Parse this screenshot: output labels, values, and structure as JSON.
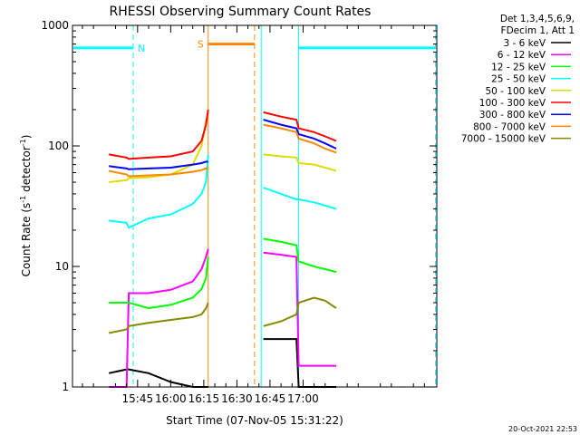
{
  "chart_data": {
    "type": "line",
    "title": "RHESSI Observing Summary Count Rates",
    "xlabel": "Start Time (07-Nov-05 15:31:22)",
    "ylabel_main": "Count Rate (s",
    "ylabel_sup1": "-1",
    "ylabel_mid": " detector",
    "ylabel_sup2": "-1",
    "ylabel_end": ")",
    "y_scale": "log",
    "ylim": [
      1,
      1000
    ],
    "xlim_minutes": [
      15.5,
      180.6
    ],
    "x_ticks": [
      {
        "min": 45,
        "label": "15:45"
      },
      {
        "min": 60,
        "label": "16:00"
      },
      {
        "min": 75,
        "label": "16:15"
      },
      {
        "min": 90,
        "label": "16:30"
      },
      {
        "min": 105,
        "label": "16:45"
      },
      {
        "min": 120,
        "label": "17:00"
      }
    ],
    "y_ticks": [
      {
        "v": 1,
        "label": "1"
      },
      {
        "v": 10,
        "label": "10"
      },
      {
        "v": 100,
        "label": "100"
      },
      {
        "v": 1000,
        "label": "1000"
      }
    ],
    "legend_header": [
      "Det 1,3,4,5,6,9,",
      "FDecim 1, Att 1"
    ],
    "legend_position": "right",
    "series": [
      {
        "name": "3 - 6 keV",
        "color": "#000000"
      },
      {
        "name": "6 - 12 keV",
        "color": "#ff00ff"
      },
      {
        "name": "12 - 25 keV",
        "color": "#00ff00"
      },
      {
        "name": "25 - 50 keV",
        "color": "#00ffff"
      },
      {
        "name": "50 - 100 keV",
        "color": "#dddd00"
      },
      {
        "name": "100 - 300 keV",
        "color": "#ff0000"
      },
      {
        "name": "300 - 800 keV",
        "color": "#0000ff"
      },
      {
        "name": "800 - 7000 keV",
        "color": "#ff8800"
      },
      {
        "name": "7000 - 15000 keV",
        "color": "#888800"
      }
    ],
    "segments": [
      {
        "x": [
          32,
          40,
          41,
          50,
          60,
          70,
          74,
          76,
          77
        ],
        "series": [
          {
            "values": [
              1.3,
              1.4,
              1.4,
              1.3,
              1.1,
              1.0,
              1.0,
              1.0,
              1.0
            ]
          },
          {
            "values": [
              1.0,
              1.0,
              6.0,
              6.0,
              6.4,
              7.5,
              9.5,
              12,
              14
            ]
          },
          {
            "values": [
              5.0,
              5.0,
              5.0,
              4.5,
              4.8,
              5.5,
              6.5,
              8.0,
              12
            ]
          },
          {
            "values": [
              24,
              23,
              21,
              25,
              27,
              33,
              40,
              50,
              85
            ]
          },
          {
            "values": [
              50,
              52,
              54,
              55,
              58,
              70,
              100,
              160,
              180
            ]
          },
          {
            "values": [
              85,
              80,
              78,
              80,
              82,
              90,
              110,
              150,
              200
            ]
          },
          {
            "values": [
              68,
              65,
              64,
              65,
              66,
              70,
              72,
              74,
              74
            ]
          },
          {
            "values": [
              62,
              58,
              56,
              57,
              58,
              61,
              63,
              65,
              65
            ]
          },
          {
            "values": [
              2.8,
              3.0,
              3.2,
              3.4,
              3.6,
              3.8,
              4.0,
              4.5,
              5.0
            ]
          }
        ]
      },
      {
        "x": [
          102,
          110,
          117,
          118,
          125,
          130,
          135
        ],
        "series": [
          {
            "values": [
              2.5,
              2.5,
              2.5,
              1.0,
              1.0,
              1.0,
              1.0
            ]
          },
          {
            "values": [
              13,
              12.5,
              12,
              1.5,
              1.5,
              1.5,
              1.5
            ]
          },
          {
            "values": [
              17,
              16,
              15,
              11,
              10,
              9.5,
              9.0
            ]
          },
          {
            "values": [
              45,
              40,
              36,
              36,
              34,
              32,
              30
            ]
          },
          {
            "values": [
              85,
              82,
              80,
              72,
              70,
              66,
              62
            ]
          },
          {
            "values": [
              190,
              175,
              165,
              140,
              130,
              120,
              110
            ]
          },
          {
            "values": [
              165,
              150,
              140,
              125,
              115,
              105,
              95
            ]
          },
          {
            "values": [
              150,
              140,
              130,
              115,
              105,
              95,
              88
            ]
          },
          {
            "values": [
              3.2,
              3.5,
              4.0,
              5.0,
              5.5,
              5.2,
              4.5
            ]
          }
        ]
      }
    ],
    "bars": [
      {
        "x_start": 16,
        "x_end": 43,
        "y": 650,
        "label": "N",
        "color": "#00ffff"
      },
      {
        "x_start": 77,
        "x_end": 98,
        "y": 700,
        "label": "S",
        "color": "#ff8800"
      },
      {
        "x_start": 118,
        "x_end": 180,
        "y": 650,
        "label": "",
        "color": "#00ffff"
      }
    ],
    "vlines": [
      {
        "x": 43,
        "style": "dashed",
        "color": "#00ffff"
      },
      {
        "x": 77,
        "style": "solid",
        "color": "#ff8800"
      },
      {
        "x": 98,
        "style": "dashed",
        "color": "#ff8800"
      },
      {
        "x": 101,
        "style": "solid",
        "color": "#00ffff"
      },
      {
        "x": 118,
        "style": "solid",
        "color": "#00ffff"
      },
      {
        "x": 180,
        "style": "dashed",
        "color": "#00ffff"
      }
    ],
    "grid": false
  },
  "footer": {
    "timestamp": "20-Oct-2021 22:53"
  }
}
